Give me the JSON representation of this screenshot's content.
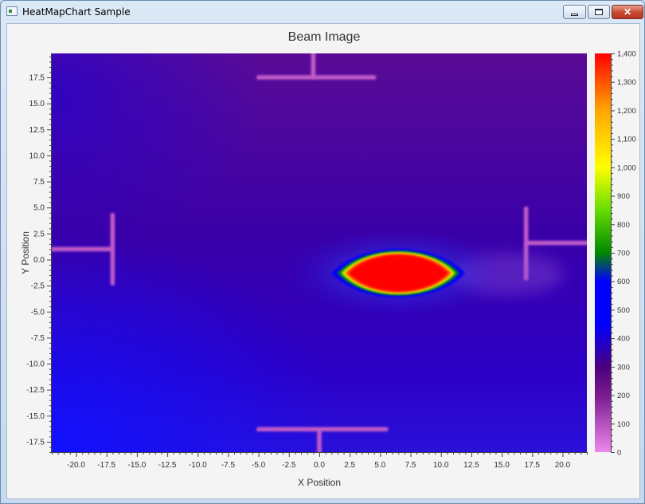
{
  "window": {
    "title": "HeatMapChart Sample",
    "minimize_label": "",
    "maximize_label": "",
    "close_label": "✕"
  },
  "chart_data": {
    "type": "heatmap",
    "title": "Beam Image",
    "xlabel": "X Position",
    "ylabel": "Y Position",
    "xlim": [
      -22,
      22
    ],
    "ylim": [
      -18.5,
      19.8
    ],
    "x_ticks": [
      -20.0,
      -17.5,
      -15.0,
      -12.5,
      -10.0,
      -7.5,
      -5.0,
      -2.5,
      0.0,
      2.5,
      5.0,
      7.5,
      10.0,
      12.5,
      15.0,
      17.5,
      20.0
    ],
    "y_ticks": [
      17.5,
      15.0,
      12.5,
      10.0,
      7.5,
      5.0,
      2.5,
      0.0,
      -2.5,
      -5.0,
      -7.5,
      -10.0,
      -12.5,
      -15.0,
      -17.5
    ],
    "x_tick_labels": [
      "-20.0",
      "-17.5",
      "-15.0",
      "-12.5",
      "-10.0",
      "-7.5",
      "-5.0",
      "-2.5",
      "0.0",
      "2.5",
      "5.0",
      "7.5",
      "10.0",
      "12.5",
      "15.0",
      "17.5",
      "20.0"
    ],
    "y_tick_labels": [
      "17.5",
      "15.0",
      "12.5",
      "10.0",
      "7.5",
      "5.0",
      "2.5",
      "0.0",
      "-2.5",
      "-5.0",
      "-7.5",
      "-10.0",
      "-12.5",
      "-15.0",
      "-17.5"
    ],
    "grid": false,
    "colorbar": {
      "min": 0,
      "max": 1400,
      "ticks": [
        0,
        100,
        200,
        300,
        400,
        500,
        600,
        700,
        800,
        900,
        1000,
        1100,
        1200,
        1300,
        1400
      ],
      "tick_labels": [
        "0",
        "100",
        "200",
        "300",
        "400",
        "500",
        "600",
        "700",
        "800",
        "900",
        "1,000",
        "1,100",
        "1,200",
        "1,300",
        "1,400"
      ],
      "color_stops": [
        {
          "value": 0,
          "color": "#ee88ee"
        },
        {
          "value": 200,
          "color": "#7a1a90"
        },
        {
          "value": 300,
          "color": "#4a0080"
        },
        {
          "value": 450,
          "color": "#0000ff"
        },
        {
          "value": 600,
          "color": "#0000ff"
        },
        {
          "value": 700,
          "color": "#008800"
        },
        {
          "value": 850,
          "color": "#66dd00"
        },
        {
          "value": 1000,
          "color": "#ffff00"
        },
        {
          "value": 1200,
          "color": "#ffa500"
        },
        {
          "value": 1400,
          "color": "#ff0000"
        }
      ]
    },
    "field": {
      "background_value": 300,
      "beam": {
        "center": [
          6.5,
          -1.3
        ],
        "peak_value": 1400,
        "width_x": 9,
        "height_y": 3.8
      },
      "crosshair_marks": [
        {
          "orientation": "top",
          "bar_x": [
            -5.0,
            4.5
          ],
          "bar_y": 17.5,
          "stem_x": -0.5,
          "stem_y": [
            17.5,
            19.8
          ],
          "value": 80
        },
        {
          "orientation": "bottom",
          "bar_x": [
            -5.0,
            5.5
          ],
          "bar_y": -16.3,
          "stem_x": 0.0,
          "stem_y": [
            -18.5,
            -16.3
          ],
          "value": 80
        },
        {
          "orientation": "left",
          "bar_y": 1.0,
          "bar_x": [
            -22,
            -17.0
          ],
          "stem_x": -17.0,
          "stem_y": [
            -2.3,
            4.3
          ],
          "value": 80
        },
        {
          "orientation": "right",
          "bar_y": 1.6,
          "bar_x": [
            17.0,
            22
          ],
          "stem_x": 17.0,
          "stem_y": [
            -1.8,
            4.9
          ],
          "value": 80
        }
      ]
    }
  }
}
